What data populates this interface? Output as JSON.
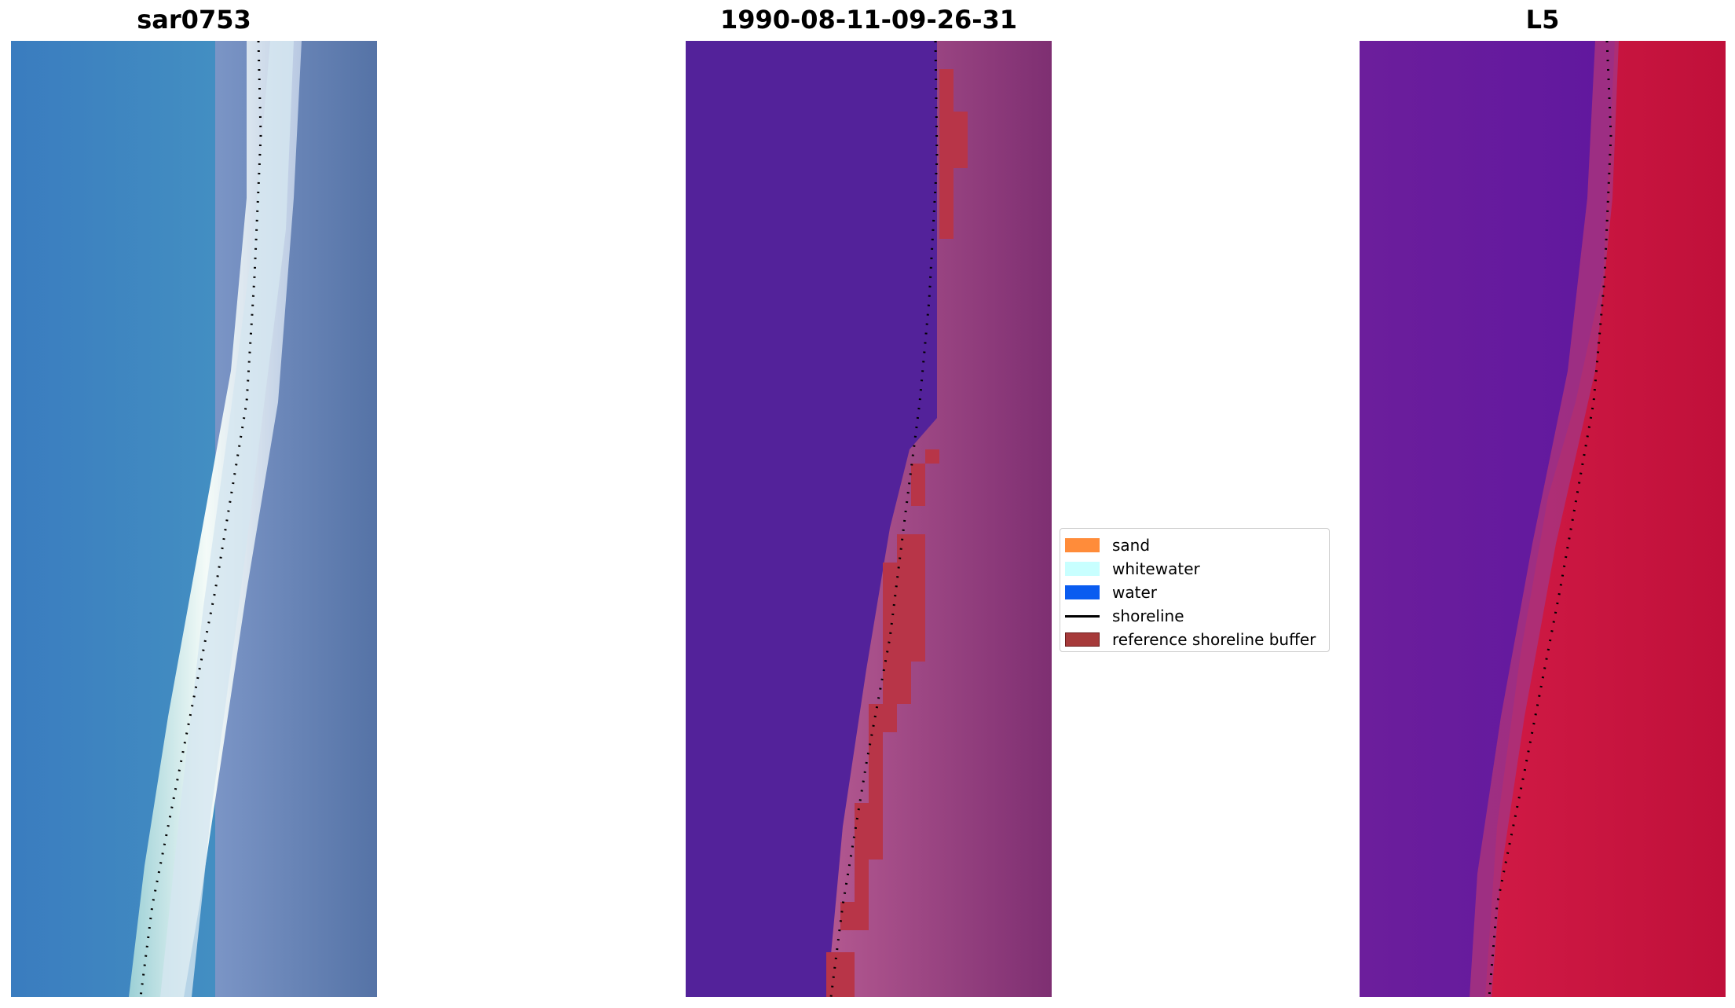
{
  "panels": [
    {
      "title": "sar0753"
    },
    {
      "title": "1990-08-11-09-26-31"
    },
    {
      "title": "L5"
    }
  ],
  "legend": {
    "items": [
      {
        "label": "sand",
        "kind": "patch",
        "color": "#ff8c3a"
      },
      {
        "label": "whitewater",
        "kind": "patch",
        "color": "#c8ffff"
      },
      {
        "label": "water",
        "kind": "patch",
        "color": "#0a5cf0"
      },
      {
        "label": "shoreline",
        "kind": "line",
        "color": "#000000"
      },
      {
        "label": "reference shoreline buffer",
        "kind": "patch",
        "color": "#a63a3a"
      }
    ]
  },
  "colors": {
    "water_deep_class": "#53229a",
    "buffer_red": "#b83548",
    "beach_pink": "#b0508a",
    "land_mauve": "#8a3278",
    "rgb_ocean": "#3b80c0",
    "rgb_whitewater": "#f2f8f6",
    "rgb_land": "#5877a8",
    "nir_water": "#6a1c9a",
    "nir_land": "#c21440"
  }
}
